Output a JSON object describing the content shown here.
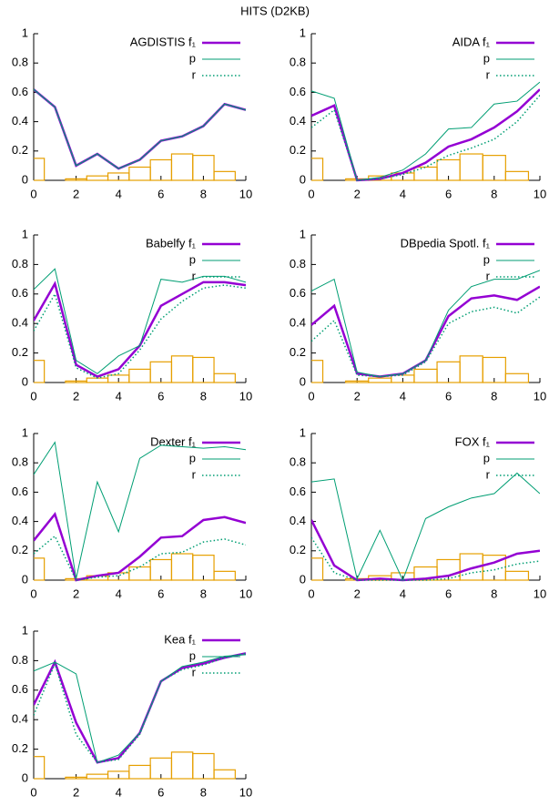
{
  "title": "HITS (D2KB)",
  "histogram": {
    "bins": [
      -0.5,
      0.5,
      1.5,
      2.5,
      3.5,
      4.5,
      5.5,
      6.5,
      7.5,
      8.5,
      9.5,
      10.5
    ],
    "counts": [
      0.15,
      0,
      0.01,
      0.03,
      0.05,
      0.09,
      0.14,
      0.18,
      0.17,
      0.06,
      0
    ],
    "color": "#e69f00"
  },
  "chart_data": [
    {
      "type": "line",
      "x": [
        0,
        1,
        2,
        3,
        4,
        5,
        6,
        7,
        8,
        9,
        10
      ],
      "xlim": [
        0,
        10
      ],
      "xticks": [
        0,
        2,
        4,
        6,
        8,
        10
      ],
      "ylim": [
        0,
        1
      ],
      "yticks": [
        0,
        0.2,
        0.4,
        0.6,
        0.8,
        1
      ],
      "series": [
        {
          "name": "AGDISTIS f₁",
          "color": "#9400d3",
          "line_width": 2.5,
          "line_style": "solid",
          "values": [
            0.62,
            0.5,
            0.1,
            0.18,
            0.08,
            0.14,
            0.27,
            0.3,
            0.37,
            0.52,
            0.48
          ]
        },
        {
          "name": "p",
          "color": "#009e73",
          "line_width": 1,
          "line_style": "solid",
          "values": [
            0.62,
            0.5,
            0.1,
            0.18,
            0.08,
            0.14,
            0.27,
            0.3,
            0.37,
            0.52,
            0.48
          ]
        },
        {
          "name": "r",
          "color": "#009e73",
          "line_width": 1.5,
          "line_style": "dotted",
          "values": [
            0.62,
            0.5,
            0.1,
            0.18,
            0.08,
            0.14,
            0.27,
            0.3,
            0.37,
            0.52,
            0.48
          ]
        }
      ]
    },
    {
      "type": "line",
      "x": [
        0,
        1,
        2,
        3,
        4,
        5,
        6,
        7,
        8,
        9,
        10
      ],
      "xlim": [
        0,
        10
      ],
      "xticks": [
        0,
        2,
        4,
        6,
        8,
        10
      ],
      "ylim": [
        0,
        1
      ],
      "yticks": [
        0,
        0.2,
        0.4,
        0.6,
        0.8,
        1
      ],
      "series": [
        {
          "name": "AIDA f₁",
          "color": "#9400d3",
          "line_width": 2.5,
          "line_style": "solid",
          "values": [
            0.44,
            0.51,
            0,
            0.01,
            0.05,
            0.12,
            0.23,
            0.28,
            0.36,
            0.47,
            0.62
          ]
        },
        {
          "name": "p",
          "color": "#009e73",
          "line_width": 1,
          "line_style": "solid",
          "values": [
            0.61,
            0.56,
            0,
            0.02,
            0.07,
            0.18,
            0.35,
            0.36,
            0.52,
            0.54,
            0.67
          ]
        },
        {
          "name": "r",
          "color": "#009e73",
          "line_width": 1.5,
          "line_style": "dotted",
          "values": [
            0.36,
            0.48,
            0,
            0.01,
            0.04,
            0.09,
            0.17,
            0.22,
            0.28,
            0.4,
            0.58
          ]
        }
      ]
    },
    {
      "type": "line",
      "x": [
        0,
        1,
        2,
        3,
        4,
        5,
        6,
        7,
        8,
        9,
        10
      ],
      "xlim": [
        0,
        10
      ],
      "xticks": [
        0,
        2,
        4,
        6,
        8,
        10
      ],
      "ylim": [
        0,
        1
      ],
      "yticks": [
        0,
        0.2,
        0.4,
        0.6,
        0.8,
        1
      ],
      "series": [
        {
          "name": "Babelfy f₁",
          "color": "#9400d3",
          "line_width": 2.5,
          "line_style": "solid",
          "values": [
            0.42,
            0.67,
            0.12,
            0.04,
            0.09,
            0.25,
            0.52,
            0.6,
            0.68,
            0.68,
            0.66
          ]
        },
        {
          "name": "p",
          "color": "#009e73",
          "line_width": 1,
          "line_style": "solid",
          "values": [
            0.63,
            0.77,
            0.15,
            0.06,
            0.18,
            0.25,
            0.7,
            0.68,
            0.72,
            0.72,
            0.68
          ]
        },
        {
          "name": "r",
          "color": "#009e73",
          "line_width": 1.5,
          "line_style": "dotted",
          "values": [
            0.35,
            0.6,
            0.1,
            0.03,
            0.06,
            0.22,
            0.43,
            0.55,
            0.64,
            0.66,
            0.64
          ]
        }
      ]
    },
    {
      "type": "line",
      "x": [
        0,
        1,
        2,
        3,
        4,
        5,
        6,
        7,
        8,
        9,
        10
      ],
      "xlim": [
        0,
        10
      ],
      "xticks": [
        0,
        2,
        4,
        6,
        8,
        10
      ],
      "ylim": [
        0,
        1
      ],
      "yticks": [
        0,
        0.2,
        0.4,
        0.6,
        0.8,
        1
      ],
      "series": [
        {
          "name": "DBpedia Spotl. f₁",
          "color": "#9400d3",
          "line_width": 2.5,
          "line_style": "solid",
          "values": [
            0.39,
            0.52,
            0.06,
            0.04,
            0.06,
            0.15,
            0.45,
            0.57,
            0.59,
            0.56,
            0.65
          ]
        },
        {
          "name": "p",
          "color": "#009e73",
          "line_width": 1,
          "line_style": "solid",
          "values": [
            0.62,
            0.7,
            0.07,
            0.04,
            0.06,
            0.15,
            0.49,
            0.65,
            0.7,
            0.7,
            0.76
          ]
        },
        {
          "name": "r",
          "color": "#009e73",
          "line_width": 1.5,
          "line_style": "dotted",
          "values": [
            0.28,
            0.42,
            0.05,
            0.04,
            0.05,
            0.14,
            0.4,
            0.48,
            0.51,
            0.47,
            0.58
          ]
        }
      ]
    },
    {
      "type": "line",
      "x": [
        0,
        1,
        2,
        3,
        4,
        5,
        6,
        7,
        8,
        9,
        10
      ],
      "xlim": [
        0,
        10
      ],
      "xticks": [
        0,
        2,
        4,
        6,
        8,
        10
      ],
      "ylim": [
        0,
        1
      ],
      "yticks": [
        0,
        0.2,
        0.4,
        0.6,
        0.8,
        1
      ],
      "series": [
        {
          "name": "Dexter f₁",
          "color": "#9400d3",
          "line_width": 2.5,
          "line_style": "solid",
          "values": [
            0.27,
            0.45,
            0,
            0.03,
            0.05,
            0.16,
            0.29,
            0.3,
            0.41,
            0.43,
            0.39
          ]
        },
        {
          "name": "p",
          "color": "#009e73",
          "line_width": 1,
          "line_style": "solid",
          "values": [
            0.72,
            0.94,
            0.01,
            0.67,
            0.33,
            0.83,
            0.92,
            0.91,
            0.9,
            0.91,
            0.89
          ]
        },
        {
          "name": "r",
          "color": "#009e73",
          "line_width": 1.5,
          "line_style": "dotted",
          "values": [
            0.18,
            0.3,
            0,
            0.02,
            0.03,
            0.09,
            0.18,
            0.19,
            0.26,
            0.28,
            0.24
          ]
        }
      ]
    },
    {
      "type": "line",
      "x": [
        0,
        1,
        2,
        3,
        4,
        5,
        6,
        7,
        8,
        9,
        10
      ],
      "xlim": [
        0,
        10
      ],
      "xticks": [
        0,
        2,
        4,
        6,
        8,
        10
      ],
      "ylim": [
        0,
        1
      ],
      "yticks": [
        0,
        0.2,
        0.4,
        0.6,
        0.8,
        1
      ],
      "series": [
        {
          "name": "FOX f₁",
          "color": "#9400d3",
          "line_width": 2.5,
          "line_style": "solid",
          "values": [
            0.41,
            0.1,
            0,
            0.01,
            0,
            0.01,
            0.03,
            0.08,
            0.12,
            0.18,
            0.2
          ]
        },
        {
          "name": "p",
          "color": "#009e73",
          "line_width": 1,
          "line_style": "solid",
          "values": [
            0.67,
            0.69,
            0.01,
            0.34,
            0,
            0.42,
            0.5,
            0.56,
            0.59,
            0.73,
            0.59
          ]
        },
        {
          "name": "r",
          "color": "#009e73",
          "line_width": 1.5,
          "line_style": "dotted",
          "values": [
            0.29,
            0.05,
            0,
            0,
            0,
            0,
            0.01,
            0.05,
            0.07,
            0.11,
            0.13
          ]
        }
      ]
    },
    {
      "type": "line",
      "x": [
        0,
        1,
        2,
        3,
        4,
        5,
        6,
        7,
        8,
        9,
        10
      ],
      "xlim": [
        0,
        10
      ],
      "xticks": [
        0,
        2,
        4,
        6,
        8,
        10
      ],
      "ylim": [
        0,
        1
      ],
      "yticks": [
        0,
        0.2,
        0.4,
        0.6,
        0.8,
        1
      ],
      "series": [
        {
          "name": "Kea f₁",
          "color": "#9400d3",
          "line_width": 2.5,
          "line_style": "solid",
          "values": [
            0.5,
            0.79,
            0.38,
            0.11,
            0.14,
            0.31,
            0.66,
            0.75,
            0.78,
            0.82,
            0.85
          ]
        },
        {
          "name": "p",
          "color": "#009e73",
          "line_width": 1,
          "line_style": "solid",
          "values": [
            0.73,
            0.79,
            0.71,
            0.11,
            0.16,
            0.31,
            0.66,
            0.76,
            0.79,
            0.83,
            0.84
          ]
        },
        {
          "name": "r",
          "color": "#009e73",
          "line_width": 1.5,
          "line_style": "dotted",
          "values": [
            0.43,
            0.78,
            0.3,
            0.11,
            0.13,
            0.3,
            0.66,
            0.74,
            0.77,
            0.82,
            0.85
          ]
        }
      ]
    }
  ]
}
